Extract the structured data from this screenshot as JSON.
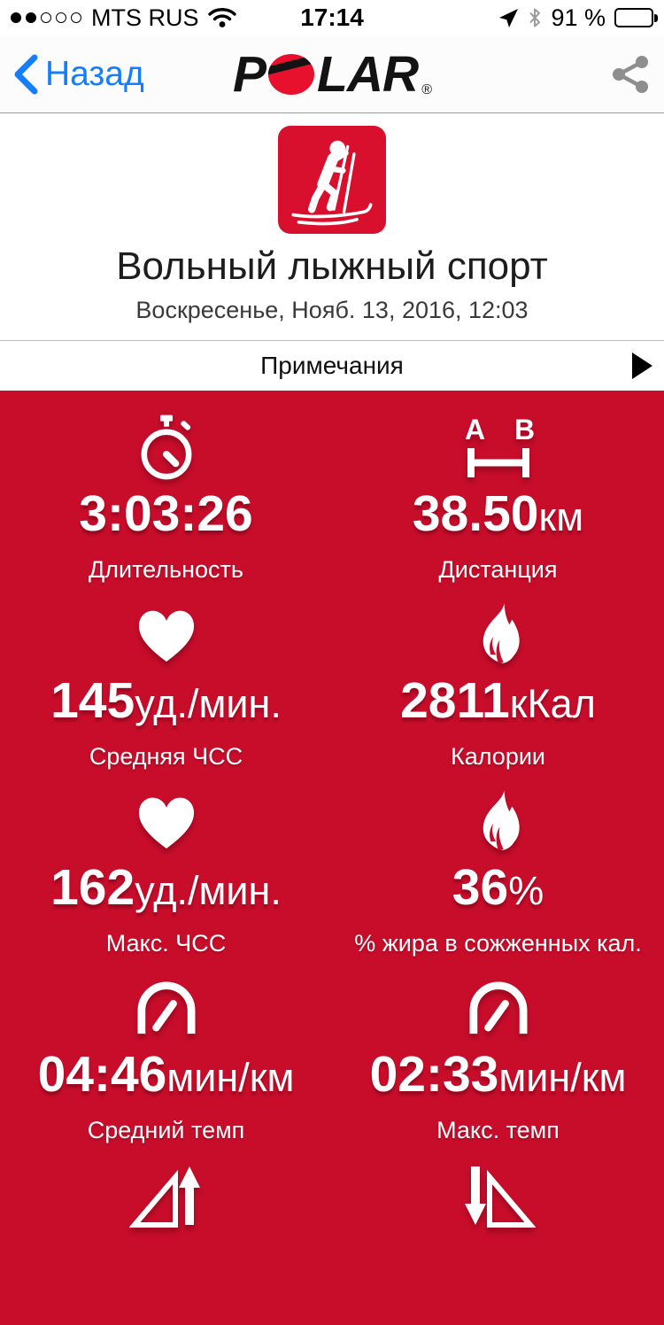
{
  "colors": {
    "red_background": "#C80D2B",
    "tile_red": "#D8102E",
    "logo_red": "#E8112D",
    "ios_blue": "#157EFB",
    "share_gray": "#8E8E8E"
  },
  "status_bar": {
    "signal_filled": 2,
    "signal_total": 5,
    "carrier": "MTS RUS",
    "time": "17:14",
    "battery_percent": "91 %"
  },
  "nav": {
    "back_label": "Назад",
    "logo_p": "P",
    "logo_lar": "LAR",
    "logo_registered": "®"
  },
  "header": {
    "sport_icon": "cross-country-skiing",
    "title": "Вольный лыжный спорт",
    "date": "Воскресенье, Нояб. 13, 2016, 12:03"
  },
  "notes": {
    "label": "Примечания"
  },
  "stats": [
    {
      "icon": "stopwatch",
      "value": "3:03:26",
      "unit": "",
      "label": "Длительность"
    },
    {
      "icon": "distance-a-to-b",
      "value": "38.50",
      "unit": "км",
      "label": "Дистанция",
      "icon_letters": [
        "A",
        "B"
      ]
    },
    {
      "icon": "heart",
      "value": "145",
      "unit": "уд./мин.",
      "label": "Средняя ЧСС"
    },
    {
      "icon": "flame",
      "value": "2811",
      "unit": "кКал",
      "label": "Калории"
    },
    {
      "icon": "heart",
      "value": "162",
      "unit": "уд./мин.",
      "label": "Макс. ЧСС"
    },
    {
      "icon": "flame",
      "value": "36",
      "unit": "%",
      "label": "% жира в сожженных кал."
    },
    {
      "icon": "gauge",
      "value": "04:46",
      "unit": "мин/км",
      "label": "Средний темп"
    },
    {
      "icon": "gauge",
      "value": "02:33",
      "unit": "мин/км",
      "label": "Макс. темп"
    }
  ],
  "partial_row": {
    "left_icon": "ascent",
    "right_icon": "descent"
  }
}
